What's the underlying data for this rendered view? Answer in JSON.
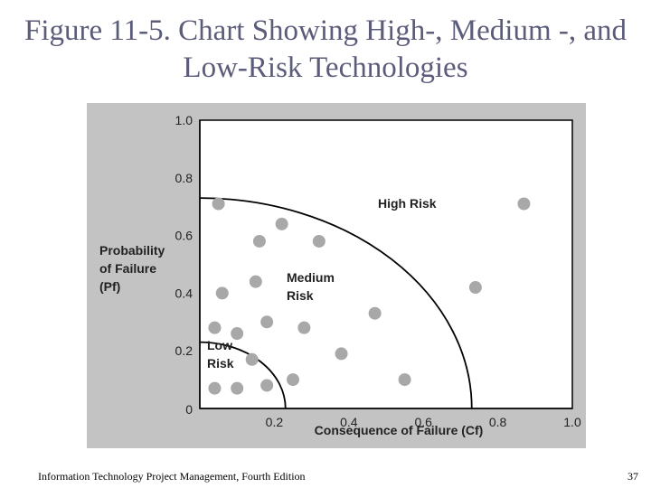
{
  "slide": {
    "title": "Figure 11-5. Chart Showing High-, Medium -, and Low-Risk Technologies",
    "footer": "Information Technology Project Management, Fourth Edition",
    "page_number": "37"
  },
  "chart_data": {
    "type": "scatter",
    "xlabel": "Consequence of Failure (Cf)",
    "ylabel_lines": [
      "Probability",
      "of Failure",
      "(Pf)"
    ],
    "x_ticks": [
      "0.2",
      "0.4",
      "0.6",
      "0.8",
      "1.0"
    ],
    "y_ticks": [
      "0",
      "0.2",
      "0.4",
      "0.6",
      "0.8",
      "1.0"
    ],
    "xlim": [
      0,
      1.0
    ],
    "ylim": [
      0,
      1.0
    ],
    "grid": false,
    "region_labels": {
      "high": [
        "High Risk"
      ],
      "medium": [
        "Medium",
        "Risk"
      ],
      "low": [
        "Low",
        "Risk"
      ]
    },
    "boundaries": [
      {
        "name": "low",
        "radius": 0.23
      },
      {
        "name": "medium",
        "radius": 0.73
      }
    ],
    "points": [
      {
        "x": 0.05,
        "y": 0.71
      },
      {
        "x": 0.22,
        "y": 0.64
      },
      {
        "x": 0.16,
        "y": 0.58
      },
      {
        "x": 0.32,
        "y": 0.58
      },
      {
        "x": 0.87,
        "y": 0.71
      },
      {
        "x": 0.15,
        "y": 0.44
      },
      {
        "x": 0.06,
        "y": 0.4
      },
      {
        "x": 0.74,
        "y": 0.42
      },
      {
        "x": 0.47,
        "y": 0.33
      },
      {
        "x": 0.18,
        "y": 0.3
      },
      {
        "x": 0.28,
        "y": 0.28
      },
      {
        "x": 0.04,
        "y": 0.28
      },
      {
        "x": 0.1,
        "y": 0.26
      },
      {
        "x": 0.38,
        "y": 0.19
      },
      {
        "x": 0.14,
        "y": 0.17
      },
      {
        "x": 0.25,
        "y": 0.1
      },
      {
        "x": 0.55,
        "y": 0.1
      },
      {
        "x": 0.04,
        "y": 0.07
      },
      {
        "x": 0.1,
        "y": 0.07
      },
      {
        "x": 0.18,
        "y": 0.08
      }
    ],
    "colors": {
      "plot_background": "#ffffff",
      "panel_background": "#c3c3c3",
      "point": "#a8a8a8",
      "line": "#000000",
      "title": "#5b5b7a"
    }
  }
}
